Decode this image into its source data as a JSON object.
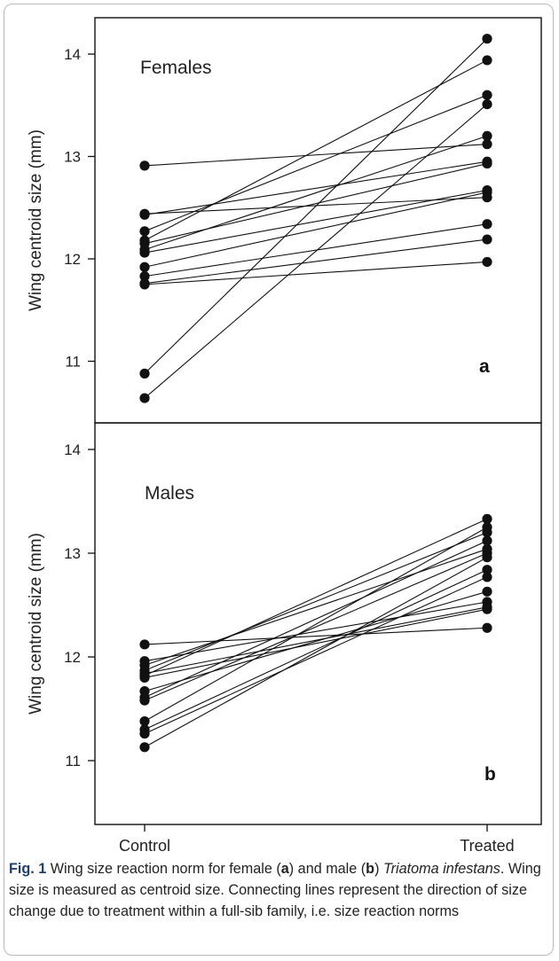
{
  "chart_data": [
    {
      "type": "line",
      "panel_label": "a",
      "title": "Females",
      "ylabel": "Wing centroid size (mm)",
      "categories": [
        "Control",
        "Treated"
      ],
      "ylim": [
        10.35,
        14.25
      ],
      "yticks": [
        "11",
        "12",
        "13",
        "14"
      ],
      "series": [
        {
          "values": [
            12.91,
            13.12
          ]
        },
        {
          "values": [
            12.44,
            12.6
          ]
        },
        {
          "values": [
            12.43,
            12.95
          ]
        },
        {
          "values": [
            12.27,
            13.6
          ]
        },
        {
          "values": [
            12.18,
            13.94
          ]
        },
        {
          "values": [
            12.15,
            12.93
          ]
        },
        {
          "values": [
            12.09,
            13.2
          ]
        },
        {
          "values": [
            12.06,
            12.67
          ]
        },
        {
          "values": [
            11.92,
            12.65
          ]
        },
        {
          "values": [
            11.83,
            12.34
          ]
        },
        {
          "values": [
            11.76,
            12.19
          ]
        },
        {
          "values": [
            10.88,
            14.15
          ]
        },
        {
          "values": [
            10.64,
            13.51
          ]
        },
        {
          "values": [
            11.75,
            11.97
          ]
        }
      ]
    },
    {
      "type": "line",
      "panel_label": "b",
      "title": "Males",
      "ylabel": "Wing centroid size (mm)",
      "categories": [
        "Control",
        "Treated"
      ],
      "ylim": [
        10.5,
        14.35
      ],
      "yticks": [
        "11",
        "12",
        "13",
        "14"
      ],
      "series": [
        {
          "values": [
            12.12,
            12.28
          ]
        },
        {
          "values": [
            11.96,
            12.53
          ]
        },
        {
          "values": [
            11.92,
            13.04
          ]
        },
        {
          "values": [
            11.87,
            13.2
          ]
        },
        {
          "values": [
            11.84,
            12.48
          ]
        },
        {
          "values": [
            11.82,
            13.33
          ]
        },
        {
          "values": [
            11.8,
            12.46
          ]
        },
        {
          "values": [
            11.67,
            12.63
          ]
        },
        {
          "values": [
            11.61,
            13.12
          ]
        },
        {
          "values": [
            11.58,
            13.0
          ]
        },
        {
          "values": [
            11.38,
            13.25
          ]
        },
        {
          "values": [
            11.3,
            12.84
          ]
        },
        {
          "values": [
            11.26,
            12.77
          ]
        },
        {
          "values": [
            11.13,
            12.96
          ]
        }
      ]
    }
  ],
  "caption": {
    "fig_label": "Fig. 1",
    "t1": "  Wing size reaction norm for female (",
    "a": "a",
    "t2": ") and male (",
    "b": "b",
    "t3": ") ",
    "species": "Triatoma infestans",
    "t4": ". Wing size is measured as centroid size. Connecting lines represent the direction of size change due to treatment within a full-sib family, i.e. size reaction norms"
  },
  "colors": {
    "marker": "#111111",
    "line": "#111111",
    "axis": "#111111"
  }
}
